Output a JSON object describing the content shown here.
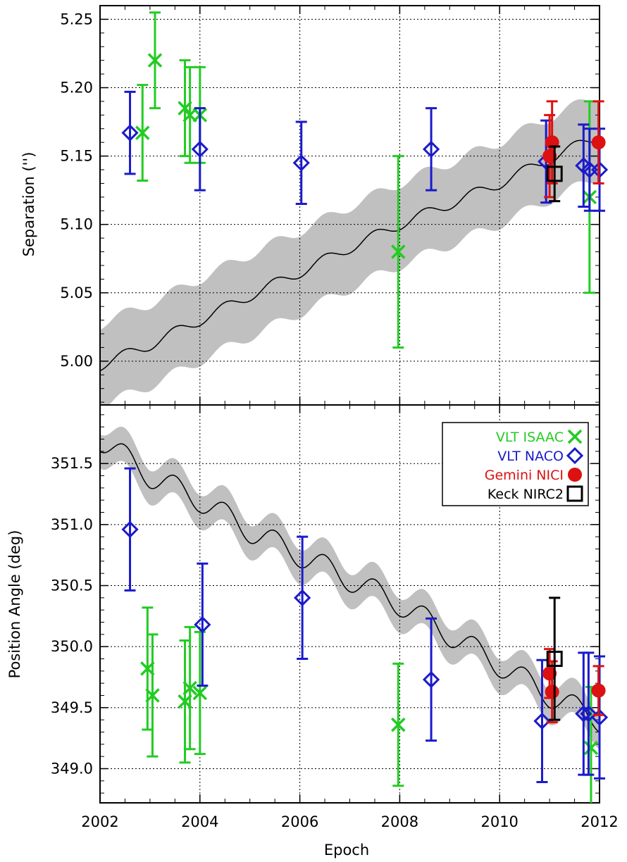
{
  "chart_data": [
    {
      "type": "scatter",
      "panel": "top",
      "ylabel": "Separation ('')",
      "xlabel": "",
      "xlim": [
        2002,
        2012
      ],
      "ylim": [
        4.968,
        5.26
      ],
      "y_ticks": [
        "5.00",
        "5.05",
        "5.10",
        "5.15",
        "5.20",
        "5.25"
      ],
      "x_ticks": [
        "2002",
        "2004",
        "2006",
        "2008",
        "2010",
        "2012"
      ],
      "grid": true,
      "model": {
        "description": "black model curve with grey uncertainty band",
        "x": [
          2002,
          2003,
          2004,
          2005,
          2006,
          2007,
          2008,
          2009,
          2010,
          2011,
          2012
        ],
        "y": [
          4.997,
          5.012,
          5.03,
          5.048,
          5.065,
          5.083,
          5.1,
          5.115,
          5.13,
          5.148,
          5.165
        ],
        "band_halfwidth": 0.03
      },
      "series": [
        {
          "name": "VLT ISAAC",
          "color": "#22cc22",
          "marker": "x",
          "points": [
            {
              "x": 2002.85,
              "y": 5.167,
              "err": 0.035
            },
            {
              "x": 2003.1,
              "y": 5.22,
              "err": 0.035
            },
            {
              "x": 2003.7,
              "y": 5.185,
              "err": 0.035
            },
            {
              "x": 2003.8,
              "y": 5.18,
              "err": 0.035
            },
            {
              "x": 2004.0,
              "y": 5.18,
              "err": 0.035
            },
            {
              "x": 2007.97,
              "y": 5.08,
              "err": 0.07
            },
            {
              "x": 2011.8,
              "y": 5.12,
              "err": 0.07
            }
          ]
        },
        {
          "name": "VLT NACO",
          "color": "#1a1acc",
          "marker": "diamond",
          "points": [
            {
              "x": 2002.6,
              "y": 5.167,
              "err": 0.03
            },
            {
              "x": 2004.0,
              "y": 5.155,
              "err": 0.03
            },
            {
              "x": 2006.03,
              "y": 5.145,
              "err": 0.03
            },
            {
              "x": 2008.63,
              "y": 5.155,
              "err": 0.03
            },
            {
              "x": 2010.93,
              "y": 5.146,
              "err": 0.03
            },
            {
              "x": 2011.68,
              "y": 5.143,
              "err": 0.03
            },
            {
              "x": 2011.8,
              "y": 5.14,
              "err": 0.03
            },
            {
              "x": 2012.0,
              "y": 5.14,
              "err": 0.03
            }
          ]
        },
        {
          "name": "Gemini NICI",
          "color": "#dd1111",
          "marker": "circle",
          "points": [
            {
              "x": 2011.05,
              "y": 5.16,
              "err": 0.03
            },
            {
              "x": 2011.0,
              "y": 5.15,
              "err": 0.03
            },
            {
              "x": 2011.98,
              "y": 5.16,
              "err": 0.03
            }
          ]
        },
        {
          "name": "Keck NIRC2",
          "color": "#000000",
          "marker": "square",
          "points": [
            {
              "x": 2011.1,
              "y": 5.137,
              "err": 0.02
            }
          ]
        }
      ]
    },
    {
      "type": "scatter",
      "panel": "bottom",
      "ylabel": "Position Angle (deg)",
      "xlabel": "Epoch",
      "xlim": [
        2002,
        2012
      ],
      "ylim": [
        348.72,
        351.98
      ],
      "y_ticks": [
        "349.0",
        "349.5",
        "350.0",
        "350.5",
        "351.0",
        "351.5"
      ],
      "x_ticks": [
        "2002",
        "2004",
        "2006",
        "2008",
        "2010",
        "2012"
      ],
      "grid": true,
      "legend_position": "top-right",
      "model": {
        "description": "black model curve with grey uncertainty band",
        "x": [
          2002,
          2003,
          2004,
          2005,
          2006,
          2007,
          2008,
          2009,
          2010,
          2011,
          2012
        ],
        "y": [
          351.7,
          351.4,
          351.2,
          350.95,
          350.75,
          350.55,
          350.35,
          350.1,
          349.85,
          349.6,
          349.4
        ],
        "band_halfwidth": 0.14
      },
      "series": [
        {
          "name": "VLT ISAAC",
          "color": "#22cc22",
          "marker": "x",
          "points": [
            {
              "x": 2002.95,
              "y": 349.82,
              "err": 0.5
            },
            {
              "x": 2003.05,
              "y": 349.6,
              "err": 0.5
            },
            {
              "x": 2003.7,
              "y": 349.55,
              "err": 0.5
            },
            {
              "x": 2003.8,
              "y": 349.66,
              "err": 0.5
            },
            {
              "x": 2004.0,
              "y": 349.62,
              "err": 0.5
            },
            {
              "x": 2007.97,
              "y": 349.36,
              "err": 0.5
            },
            {
              "x": 2011.83,
              "y": 349.17,
              "err": 0.5
            }
          ]
        },
        {
          "name": "VLT NACO",
          "color": "#1a1acc",
          "marker": "diamond",
          "points": [
            {
              "x": 2002.6,
              "y": 350.96,
              "err": 0.5
            },
            {
              "x": 2004.05,
              "y": 350.18,
              "err": 0.5
            },
            {
              "x": 2006.05,
              "y": 350.4,
              "err": 0.5
            },
            {
              "x": 2008.63,
              "y": 349.73,
              "err": 0.5
            },
            {
              "x": 2010.85,
              "y": 349.39,
              "err": 0.5
            },
            {
              "x": 2011.68,
              "y": 349.45,
              "err": 0.5
            },
            {
              "x": 2011.78,
              "y": 349.45,
              "err": 0.5
            },
            {
              "x": 2012.0,
              "y": 349.42,
              "err": 0.5
            }
          ]
        },
        {
          "name": "Gemini NICI",
          "color": "#dd1111",
          "marker": "circle",
          "points": [
            {
              "x": 2011.0,
              "y": 349.78,
              "err": 0.2
            },
            {
              "x": 2011.05,
              "y": 349.63,
              "err": 0.25
            },
            {
              "x": 2011.98,
              "y": 349.64,
              "err": 0.2
            }
          ]
        },
        {
          "name": "Keck NIRC2",
          "color": "#000000",
          "marker": "square",
          "points": [
            {
              "x": 2011.1,
              "y": 349.9,
              "err": 0.5
            }
          ]
        }
      ]
    }
  ],
  "legend": {
    "items": [
      {
        "label": "VLT  ISAAC",
        "color": "#22cc22",
        "marker": "x"
      },
      {
        "label": "VLT  NACO",
        "color": "#1a1acc",
        "marker": "diamond"
      },
      {
        "label": "Gemini  NICI",
        "color": "#dd1111",
        "marker": "circle"
      },
      {
        "label": "Keck  NIRC2",
        "color": "#000000",
        "marker": "square"
      }
    ]
  },
  "colors": {
    "band": "#c0c0c0",
    "model": "#000000",
    "grid": "#000000"
  }
}
